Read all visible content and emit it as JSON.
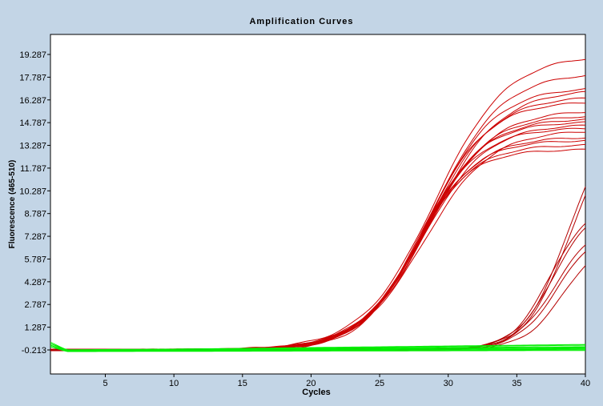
{
  "chart_data": {
    "type": "line",
    "title": "Amplification Curves",
    "xlabel": "Cycles",
    "ylabel": "Fluorescence (465-510)",
    "xlim": [
      1,
      40
    ],
    "ylim": [
      -1.2,
      20.7
    ],
    "xticks": [
      "5",
      "10",
      "15",
      "20",
      "25",
      "30",
      "35",
      "40"
    ],
    "xtick_values": [
      5,
      10,
      15,
      20,
      25,
      30,
      35,
      40
    ],
    "yticks": [
      "-0.213",
      "1.287",
      "2.787",
      "4.287",
      "5.787",
      "7.287",
      "8.787",
      "10.287",
      "11.787",
      "13.287",
      "14.787",
      "16.287",
      "17.787",
      "19.287"
    ],
    "ytick_values": [
      -0.213,
      1.287,
      2.787,
      4.287,
      5.787,
      7.287,
      8.787,
      10.287,
      11.787,
      13.287,
      14.787,
      16.287,
      17.787,
      19.287
    ],
    "grid": false,
    "colors": {
      "positive": "#cc0000",
      "late_positive": "#b40000",
      "negative": "#00ee00",
      "background": "#c3d5e6",
      "plot_background": "#ffffff"
    },
    "series_groups": [
      {
        "group": "early_positive",
        "color": "#cc0000",
        "model": "sigmoid",
        "curves": [
          {
            "plateau": 19.6,
            "midpoint": 29.0,
            "slope": 2.6,
            "end": 19.0
          },
          {
            "plateau": 18.4,
            "midpoint": 28.9,
            "slope": 2.5,
            "end": 17.9
          },
          {
            "plateau": 17.6,
            "midpoint": 28.6,
            "slope": 2.4,
            "end": 17.0
          },
          {
            "plateau": 17.4,
            "midpoint": 28.8,
            "slope": 2.5,
            "end": 16.8
          },
          {
            "plateau": 16.9,
            "midpoint": 28.5,
            "slope": 2.4,
            "end": 16.4
          },
          {
            "plateau": 16.5,
            "midpoint": 28.3,
            "slope": 2.3,
            "end": 16.1
          },
          {
            "plateau": 15.9,
            "midpoint": 28.4,
            "slope": 2.4,
            "end": 15.5
          },
          {
            "plateau": 15.6,
            "midpoint": 28.2,
            "slope": 2.3,
            "end": 15.2
          },
          {
            "plateau": 15.4,
            "midpoint": 28.1,
            "slope": 2.3,
            "end": 15.0
          },
          {
            "plateau": 15.2,
            "midpoint": 28.0,
            "slope": 2.2,
            "end": 14.8
          },
          {
            "plateau": 15.0,
            "midpoint": 28.2,
            "slope": 2.3,
            "end": 14.6
          },
          {
            "plateau": 14.8,
            "midpoint": 27.9,
            "slope": 2.2,
            "end": 14.4
          },
          {
            "plateau": 14.6,
            "midpoint": 28.3,
            "slope": 2.4,
            "end": 14.2
          },
          {
            "plateau": 14.2,
            "midpoint": 27.8,
            "slope": 2.2,
            "end": 13.8
          },
          {
            "plateau": 13.9,
            "midpoint": 27.7,
            "slope": 2.1,
            "end": 13.6
          },
          {
            "plateau": 13.6,
            "midpoint": 27.6,
            "slope": 2.1,
            "end": 13.3
          },
          {
            "plateau": 13.4,
            "midpoint": 27.5,
            "slope": 2.0,
            "end": 13.0
          }
        ]
      },
      {
        "group": "late_positive",
        "color": "#b40000",
        "model": "sigmoid",
        "curves": [
          {
            "plateau": 14.0,
            "midpoint": 38.8,
            "slope": 1.6,
            "end": 10.6
          },
          {
            "plateau": 13.2,
            "midpoint": 38.9,
            "slope": 1.6,
            "end": 10.0
          },
          {
            "plateau": 9.6,
            "midpoint": 37.4,
            "slope": 1.4,
            "end": 8.1
          },
          {
            "plateau": 9.4,
            "midpoint": 37.6,
            "slope": 1.4,
            "end": 7.8
          },
          {
            "plateau": 8.2,
            "midpoint": 37.8,
            "slope": 1.5,
            "end": 6.7
          },
          {
            "plateau": 7.9,
            "midpoint": 38.0,
            "slope": 1.5,
            "end": 6.3
          },
          {
            "plateau": 7.4,
            "midpoint": 38.5,
            "slope": 1.5,
            "end": 5.4
          }
        ]
      },
      {
        "group": "negative",
        "color": "#00ee00",
        "model": "flat",
        "curves": [
          {
            "start": 0.1,
            "level": -0.25,
            "end": 0.1
          },
          {
            "start": 0.2,
            "level": -0.2,
            "end": 0.0
          },
          {
            "start": 0.3,
            "level": -0.22,
            "end": -0.05
          },
          {
            "start": 0.0,
            "level": -0.28,
            "end": -0.15
          },
          {
            "start": 0.1,
            "level": -0.3,
            "end": -0.2
          },
          {
            "start": 0.2,
            "level": -0.24,
            "end": 0.15
          },
          {
            "start": 0.1,
            "level": -0.26,
            "end": -0.1
          },
          {
            "start": 0.0,
            "level": -0.32,
            "end": -0.25
          }
        ]
      }
    ]
  }
}
